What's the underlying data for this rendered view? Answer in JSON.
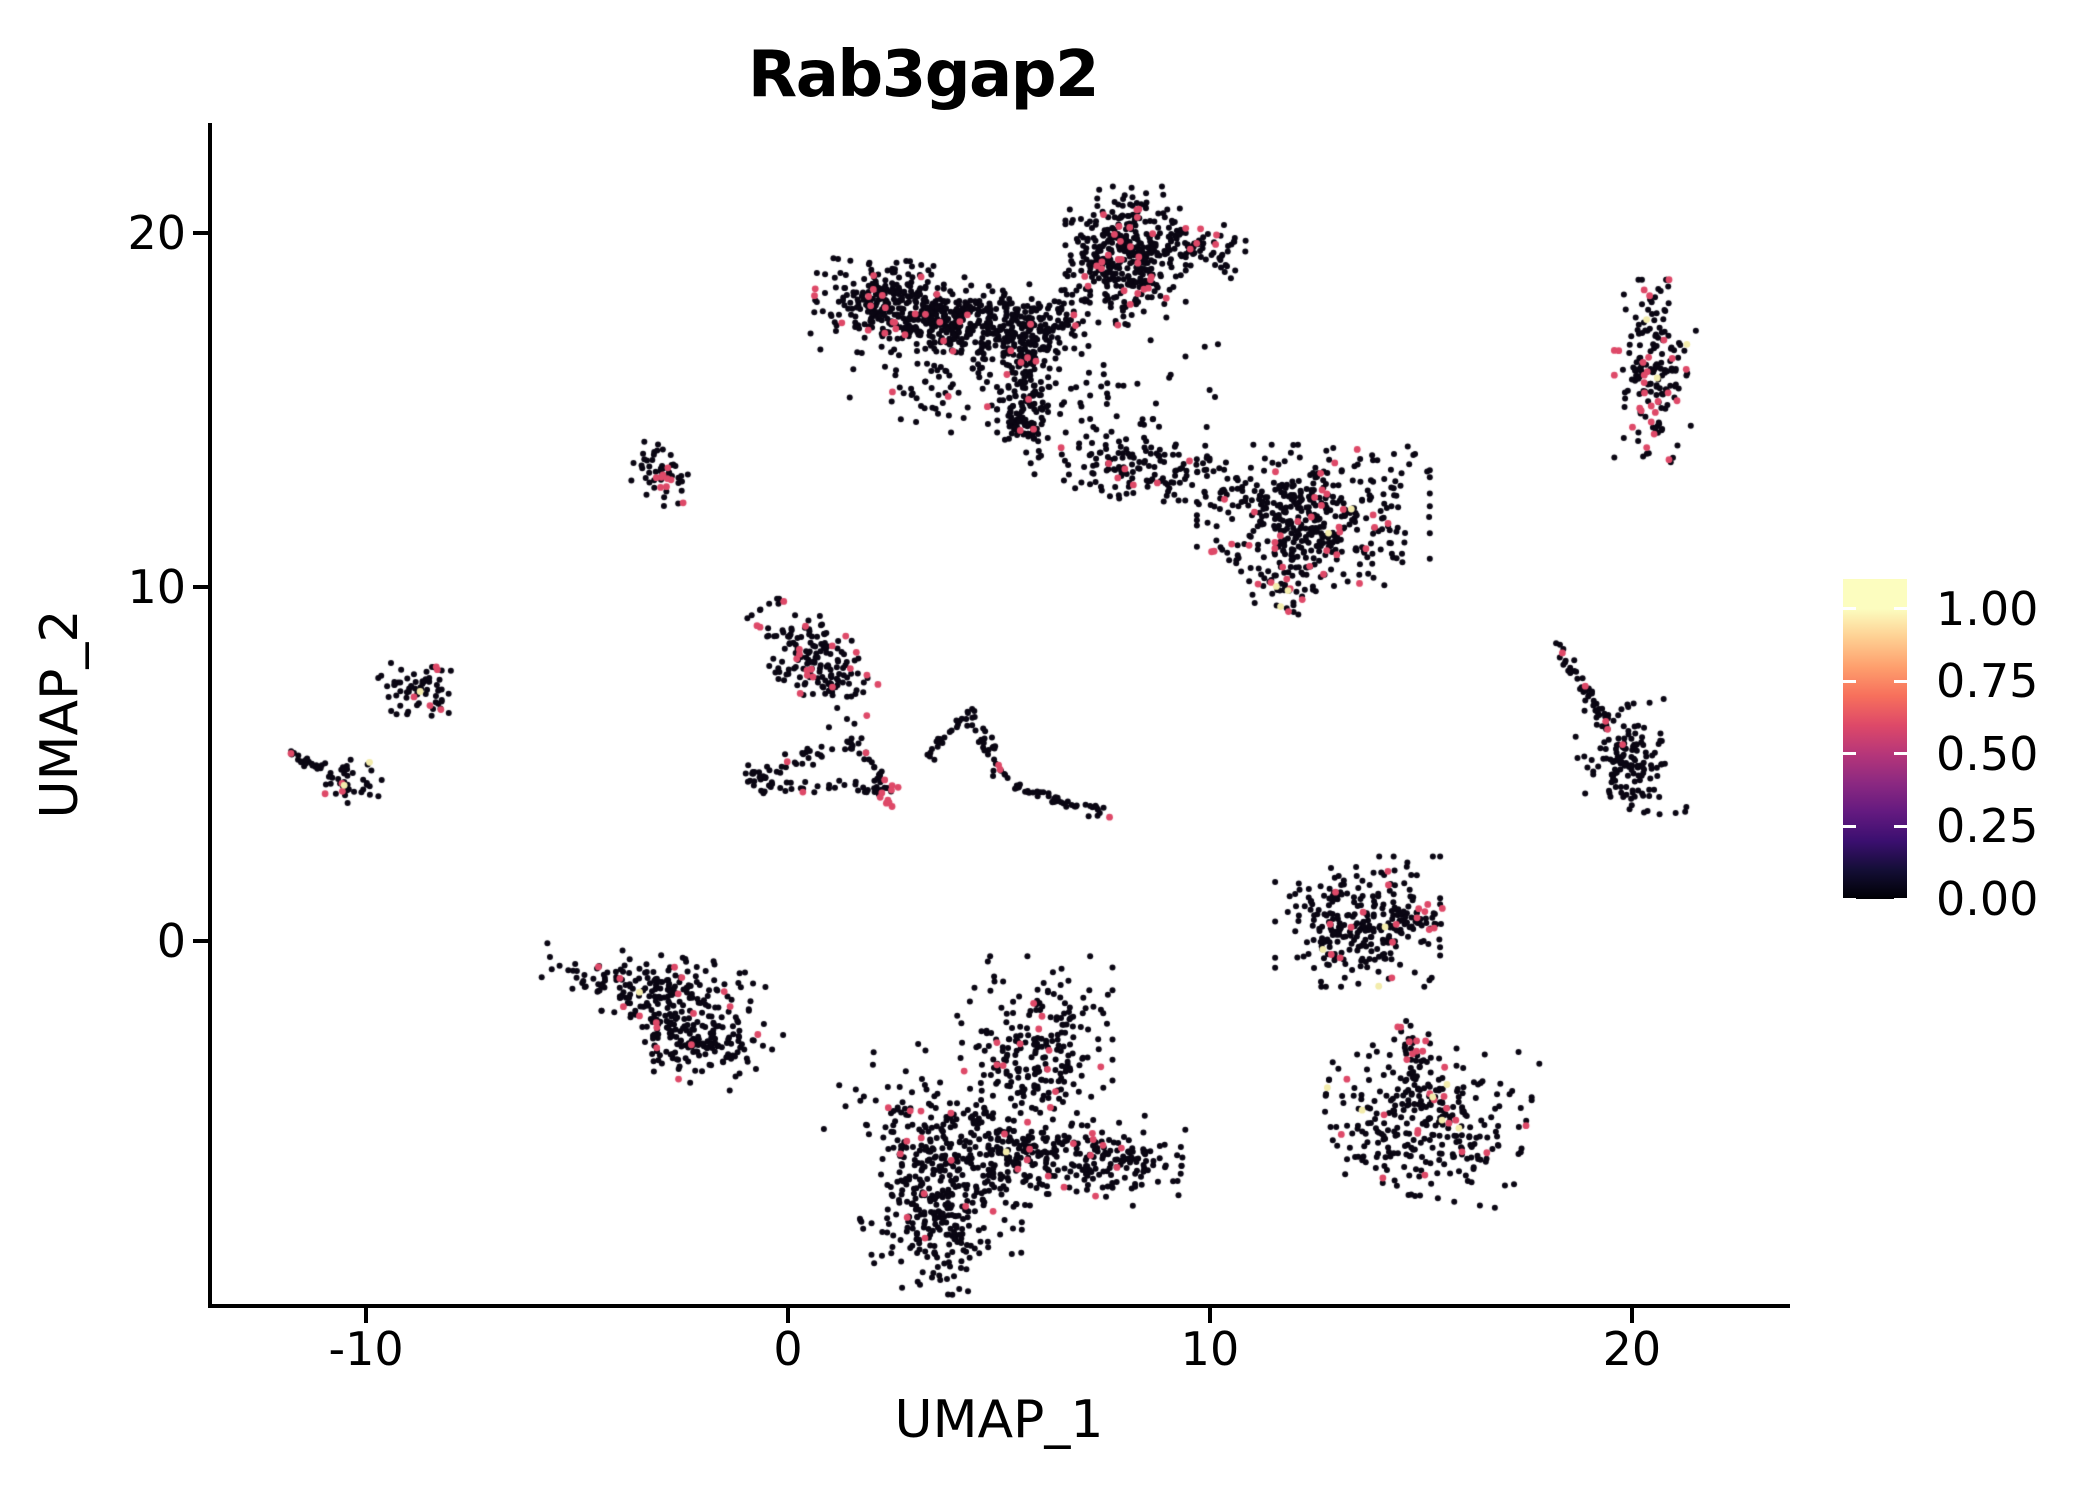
{
  "title": "Rab3gap2",
  "axes": {
    "x": {
      "label": "UMAP_1",
      "tick_labels": [
        "-10",
        "0",
        "10",
        "20"
      ],
      "tick_values": [
        -10,
        0,
        10,
        20
      ]
    },
    "y": {
      "label": "UMAP_2",
      "tick_labels": [
        "0",
        "10",
        "20"
      ],
      "tick_values": [
        0,
        10,
        20
      ]
    }
  },
  "legend": {
    "labels": [
      "1.00",
      "0.75",
      "0.50",
      "0.25",
      "0.00"
    ],
    "values": [
      1.0,
      0.75,
      0.5,
      0.25,
      0.0
    ],
    "v_top": 1.103,
    "gradient_stops": [
      {
        "v": 1.0,
        "c": "#fcfdbf"
      },
      {
        "v": 0.9,
        "c": "#fecf92"
      },
      {
        "v": 0.8,
        "c": "#fe9f6d"
      },
      {
        "v": 0.7,
        "c": "#f7705c"
      },
      {
        "v": 0.6,
        "c": "#de4968"
      },
      {
        "v": 0.5,
        "c": "#b63679"
      },
      {
        "v": 0.4,
        "c": "#8c2981"
      },
      {
        "v": 0.3,
        "c": "#641a80"
      },
      {
        "v": 0.2,
        "c": "#3b0f70"
      },
      {
        "v": 0.1,
        "c": "#140e36"
      },
      {
        "v": 0.0,
        "c": "#000004"
      }
    ]
  },
  "chart_data": {
    "type": "scatter",
    "title": "Rab3gap2",
    "xlabel": "UMAP_1",
    "ylabel": "UMAP_2",
    "xlim": [
      -13.7,
      23.7
    ],
    "ylim": [
      -10.3,
      23.1
    ],
    "x_ticks": [
      -10,
      0,
      10,
      20
    ],
    "y_ticks": [
      0,
      10,
      20
    ],
    "grid": false,
    "legend_position": "right",
    "colorbar_ticks": [
      1.0,
      0.75,
      0.5,
      0.25,
      0.0
    ],
    "point_colors": {
      "low": "#0a0613",
      "mid": "#de4968",
      "high": "#f3ecac"
    },
    "point_radius_px": {
      "low": 3.0,
      "mid": 3.4,
      "high": 3.4
    },
    "seed": 1234,
    "clusters": [
      {
        "id": "A1a",
        "type": "blob",
        "cx": 2.4,
        "cy": 17.9,
        "sx": 0.78,
        "sy": 0.58,
        "rot": -5,
        "n": 300,
        "p_mid": 0.055,
        "p_high": 0
      },
      {
        "id": "A1b",
        "type": "blob",
        "cx": 4.3,
        "cy": 17.35,
        "sx": 0.8,
        "sy": 0.5,
        "rot": -10,
        "n": 260,
        "p_mid": 0.05,
        "p_high": 0
      },
      {
        "id": "A2",
        "type": "blob",
        "cx": 5.9,
        "cy": 17.4,
        "sx": 0.55,
        "sy": 0.5,
        "rot": 0,
        "n": 140,
        "p_mid": 0.03,
        "p_high": 0
      },
      {
        "id": "A3",
        "type": "blob",
        "cx": 8.0,
        "cy": 19.35,
        "sx": 0.62,
        "sy": 0.85,
        "rot": 0,
        "n": 400,
        "p_mid": 0.075,
        "p_high": 0.002
      },
      {
        "id": "A4",
        "type": "strand",
        "x1": 8.9,
        "y1": 19.9,
        "x2": 10.6,
        "y2": 19.4,
        "j": 0.33,
        "n": 70,
        "p_mid": 0.08,
        "p_high": 0
      },
      {
        "id": "A5",
        "type": "blob",
        "cx": 3.6,
        "cy": 15.7,
        "sx": 1.05,
        "sy": 0.6,
        "rot": 0,
        "n": 70,
        "p_mid": 0.02,
        "p_high": 0
      },
      {
        "id": "A6",
        "type": "strand",
        "x1": 5.62,
        "y1": 16.7,
        "x2": 5.55,
        "y2": 14.6,
        "j": 0.26,
        "n": 110,
        "p_mid": 0.02,
        "p_high": 0
      },
      {
        "id": "A6b",
        "type": "blob",
        "cx": 5.55,
        "cy": 14.55,
        "sx": 0.2,
        "sy": 0.28,
        "rot": 0,
        "n": 40,
        "p_mid": 0.02,
        "p_high": 0
      },
      {
        "id": "A7",
        "type": "strand",
        "x1": 5.6,
        "y1": 14.3,
        "x2": 5.95,
        "y2": 13.55,
        "j": 0.12,
        "n": 8,
        "p_mid": 0,
        "p_high": 0
      },
      {
        "id": "A8",
        "type": "strand",
        "x1": 6.35,
        "y1": 16.1,
        "x2": 8.6,
        "y2": 13.7,
        "j": 0.45,
        "n": 46,
        "p_mid": 0.02,
        "p_high": 0
      },
      {
        "id": "A9",
        "type": "strand",
        "x1": 8.7,
        "y1": 14.8,
        "x2": 10.4,
        "y2": 12.2,
        "j": 0.5,
        "n": 12,
        "p_mid": 0,
        "p_high": 0
      },
      {
        "id": "A10",
        "type": "blob",
        "cx": 9.4,
        "cy": 16.2,
        "sx": 0.5,
        "sy": 0.9,
        "rot": 0,
        "n": 9,
        "p_mid": 0,
        "p_high": 0
      },
      {
        "id": "B",
        "type": "blob",
        "cx": 20.55,
        "cy": 16.1,
        "sx": 0.42,
        "sy": 1.12,
        "rot": 0,
        "n": 175,
        "p_mid": 0.17,
        "p_high": 0.012
      },
      {
        "id": "By1",
        "type": "dot",
        "x": 20.35,
        "y": 17.55,
        "level": "high"
      },
      {
        "id": "By2",
        "type": "dot",
        "x": 20.6,
        "y": 15.9,
        "level": "high"
      },
      {
        "id": "C1",
        "type": "blob",
        "cx": 8.1,
        "cy": 13.3,
        "sx": 0.95,
        "sy": 0.42,
        "rot": -12,
        "n": 115,
        "p_mid": 0.05,
        "p_high": 0
      },
      {
        "id": "C2",
        "type": "strand",
        "x1": 9.4,
        "y1": 13.4,
        "x2": 10.9,
        "y2": 12.7,
        "j": 0.3,
        "n": 28,
        "p_mid": 0.03,
        "p_high": 0
      },
      {
        "id": "C3",
        "type": "blob",
        "cx": 12.45,
        "cy": 11.9,
        "sx": 1.2,
        "sy": 0.92,
        "rot": 0,
        "n": 440,
        "p_mid": 0.065,
        "p_high": 0.004
      },
      {
        "id": "C4",
        "type": "blob",
        "cx": 11.75,
        "cy": 10.0,
        "sx": 0.3,
        "sy": 0.4,
        "rot": 0,
        "n": 40,
        "p_mid": 0.14,
        "p_high": 0.02
      },
      {
        "id": "Cy1",
        "type": "dot",
        "x": 13.35,
        "y": 12.2,
        "level": "high"
      },
      {
        "id": "Cy2",
        "type": "dot",
        "x": 11.85,
        "y": 9.9,
        "level": "high"
      },
      {
        "id": "D",
        "type": "blob",
        "cx": -3.05,
        "cy": 13.2,
        "sx": 0.3,
        "sy": 0.42,
        "rot": 20,
        "n": 55,
        "p_mid": 0.1,
        "p_high": 0
      },
      {
        "id": "E1",
        "type": "blob",
        "cx": 0.65,
        "cy": 7.9,
        "sx": 0.45,
        "sy": 0.85,
        "rot": 38,
        "n": 175,
        "p_mid": 0.065,
        "p_high": 0
      },
      {
        "id": "E2a",
        "type": "strand",
        "x1": -0.76,
        "y1": 4.66,
        "x2": 1.57,
        "y2": 5.73,
        "j": 0.12,
        "n": 30,
        "p_mid": 0.06,
        "p_high": 0
      },
      {
        "id": "E2b",
        "type": "strand",
        "x1": 1.57,
        "y1": 5.73,
        "x2": 2.39,
        "y2": 4.28,
        "j": 0.12,
        "n": 22,
        "p_mid": 0.05,
        "p_high": 0
      },
      {
        "id": "E2c",
        "type": "strand",
        "x1": 2.39,
        "y1": 4.28,
        "x2": -0.43,
        "y2": 4.38,
        "j": 0.1,
        "n": 32,
        "p_mid": 0.06,
        "p_high": 0
      },
      {
        "id": "E2d",
        "type": "blob",
        "cx": -0.72,
        "cy": 4.55,
        "sx": 0.25,
        "sy": 0.18,
        "rot": 0,
        "n": 22,
        "p_mid": 0.05,
        "p_high": 0
      },
      {
        "id": "E2p",
        "type": "blob",
        "cx": 2.45,
        "cy": 4.2,
        "sx": 0.12,
        "sy": 0.2,
        "rot": 0,
        "n": 12,
        "p_mid": 0.65,
        "p_high": 0
      },
      {
        "id": "E3a",
        "type": "strand",
        "x1": 3.17,
        "y1": 5.1,
        "x2": 4.33,
        "y2": 6.42,
        "j": 0.1,
        "n": 26,
        "p_mid": 0.05,
        "p_high": 0
      },
      {
        "id": "E3b",
        "type": "strand",
        "x1": 4.33,
        "y1": 6.42,
        "x2": 5.3,
        "y2": 4.4,
        "j": 0.12,
        "n": 30,
        "p_mid": 0.12,
        "p_high": 0
      },
      {
        "id": "E3c",
        "type": "strand",
        "x1": 5.3,
        "y1": 4.4,
        "x2": 7.58,
        "y2": 3.55,
        "j": 0.08,
        "n": 46,
        "p_mid": 0.02,
        "p_high": 0
      },
      {
        "id": "E3t",
        "type": "dot",
        "x": 7.62,
        "y": 3.5,
        "level": "mid"
      },
      {
        "id": "F",
        "type": "blob",
        "cx": -8.8,
        "cy": 7.1,
        "sx": 0.42,
        "sy": 0.36,
        "rot": -25,
        "n": 62,
        "p_mid": 0.1,
        "p_high": 0
      },
      {
        "id": "Fs",
        "type": "blob",
        "cx": -8.3,
        "cy": 7.72,
        "sx": 0.13,
        "sy": 0.1,
        "rot": 0,
        "n": 6,
        "p_mid": 0.25,
        "p_high": 0
      },
      {
        "id": "Fy",
        "type": "dot",
        "x": -8.72,
        "y": 7.05,
        "level": "high"
      },
      {
        "id": "G1",
        "type": "strand",
        "x1": -11.82,
        "y1": 5.3,
        "x2": -11.0,
        "y2": 4.85,
        "j": 0.06,
        "n": 22,
        "p_mid": 0.02,
        "p_high": 0
      },
      {
        "id": "Gp",
        "type": "dot",
        "x": -11.78,
        "y": 5.3,
        "level": "mid"
      },
      {
        "id": "G2",
        "type": "blob",
        "cx": -10.35,
        "cy": 4.5,
        "sx": 0.32,
        "sy": 0.26,
        "rot": -15,
        "n": 42,
        "p_mid": 0.08,
        "p_high": 0
      },
      {
        "id": "Gy1",
        "type": "dot",
        "x": -9.92,
        "y": 5.05,
        "level": "high"
      },
      {
        "id": "Gy2",
        "type": "dot",
        "x": -10.52,
        "y": 4.4,
        "level": "high"
      },
      {
        "id": "H1",
        "type": "strand",
        "x1": 18.27,
        "y1": 8.25,
        "x2": 19.55,
        "y2": 5.95,
        "j": 0.09,
        "n": 48,
        "p_mid": 0.1,
        "p_high": 0
      },
      {
        "id": "H2",
        "type": "blob",
        "cx": 19.9,
        "cy": 5.05,
        "sx": 0.5,
        "sy": 0.7,
        "rot": 10,
        "n": 150,
        "p_mid": 0.012,
        "p_high": 0
      },
      {
        "id": "Hp",
        "type": "dot",
        "x": 19.78,
        "y": 5.55,
        "level": "mid"
      },
      {
        "id": "I1",
        "type": "blob",
        "cx": -3.2,
        "cy": -1.25,
        "sx": 1.15,
        "sy": 0.38,
        "rot": -8,
        "n": 165,
        "p_mid": 0.04,
        "p_high": 0
      },
      {
        "id": "I2",
        "type": "strand",
        "x1": -3.4,
        "y1": -1.75,
        "x2": -2.6,
        "y2": -2.6,
        "j": 0.16,
        "n": 26,
        "p_mid": 0.03,
        "p_high": 0
      },
      {
        "id": "I3",
        "type": "blob",
        "cx": -2.1,
        "cy": -2.85,
        "sx": 0.78,
        "sy": 0.5,
        "rot": -20,
        "n": 165,
        "p_mid": 0.035,
        "p_high": 0
      },
      {
        "id": "Iy",
        "type": "dot",
        "x": -3.52,
        "y": -1.44,
        "level": "high"
      },
      {
        "id": "J1",
        "type": "blob",
        "cx": 5.85,
        "cy": -3.3,
        "sx": 0.8,
        "sy": 1.25,
        "rot": 0,
        "n": 255,
        "p_mid": 0.06,
        "p_high": 0
      },
      {
        "id": "J2",
        "type": "blob",
        "cx": 3.3,
        "cy": -5.3,
        "sx": 1.05,
        "sy": 0.8,
        "rot": -35,
        "n": 135,
        "p_mid": 0.07,
        "p_high": 0
      },
      {
        "id": "J3",
        "type": "blob",
        "cx": 6.0,
        "cy": -6.1,
        "sx": 1.45,
        "sy": 0.6,
        "rot": -5,
        "n": 300,
        "p_mid": 0.05,
        "p_high": 0
      },
      {
        "id": "J4",
        "type": "blob",
        "cx": 3.6,
        "cy": -7.8,
        "sx": 0.8,
        "sy": 0.95,
        "rot": 15,
        "n": 260,
        "p_mid": 0.05,
        "p_high": 0
      },
      {
        "id": "J5",
        "type": "strand",
        "x1": 7.2,
        "y1": -5.8,
        "x2": 8.45,
        "y2": -6.35,
        "j": 0.25,
        "n": 40,
        "p_mid": 0.08,
        "p_high": 0
      },
      {
        "id": "Jy",
        "type": "dot",
        "x": 5.17,
        "y": -5.95,
        "level": "high"
      },
      {
        "id": "K1",
        "type": "blob",
        "cx": 13.5,
        "cy": 0.55,
        "sx": 0.85,
        "sy": 0.8,
        "rot": 0,
        "n": 255,
        "p_mid": 0.05,
        "p_high": 0.006
      },
      {
        "id": "K1b",
        "type": "strand",
        "x1": 14.3,
        "y1": 0.9,
        "x2": 15.35,
        "y2": 0.3,
        "j": 0.3,
        "n": 38,
        "p_mid": 0.06,
        "p_high": 0
      },
      {
        "id": "K1c",
        "type": "blob",
        "cx": 15.15,
        "cy": 0.5,
        "sx": 0.2,
        "sy": 0.14,
        "rot": 0,
        "n": 7,
        "p_mid": 0.2,
        "p_high": 0
      },
      {
        "id": "Kn",
        "type": "strand",
        "x1": 14.55,
        "y1": -2.3,
        "x2": 14.8,
        "y2": -3.3,
        "j": 0.13,
        "n": 20,
        "p_mid": 0.22,
        "p_high": 0
      },
      {
        "id": "K2",
        "type": "blob",
        "cx": 15.1,
        "cy": -4.9,
        "sx": 1.05,
        "sy": 1.0,
        "rot": -10,
        "n": 330,
        "p_mid": 0.065,
        "p_high": 0.01
      },
      {
        "id": "Ky1",
        "type": "dot",
        "x": 14.0,
        "y": -1.27,
        "level": "high"
      },
      {
        "id": "Ky2",
        "type": "dot",
        "x": 15.5,
        "y": -5.05,
        "level": "high"
      },
      {
        "id": "Ky3",
        "type": "dot",
        "x": 15.9,
        "y": -5.28,
        "level": "high"
      },
      {
        "id": "Ky4",
        "type": "dot",
        "x": 14.15,
        "y": 0.4,
        "level": "high"
      }
    ]
  }
}
